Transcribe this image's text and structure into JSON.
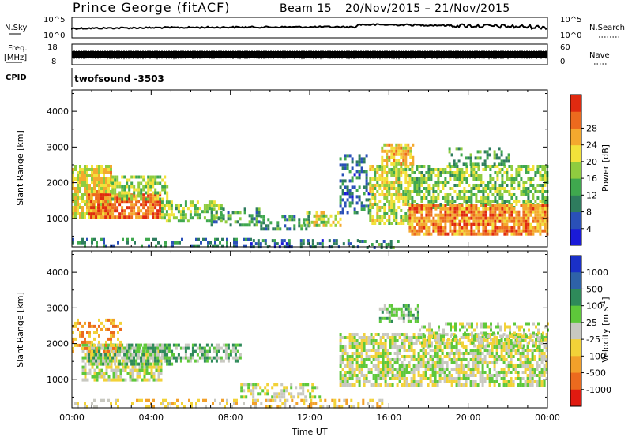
{
  "header": {
    "station": "Prince George (fitACF)",
    "beam": "Beam 15",
    "date_range": "20/Nov/2015 – 21/Nov/2015"
  },
  "strips": {
    "nsky_label": "N.Sky",
    "nsky_ticks": [
      "10^5",
      "10^0"
    ],
    "nsearch_label": "N.Search",
    "nsearch_ticks": [
      "10^5",
      "10^0"
    ],
    "freq_label_1": "Freq.",
    "freq_label_2": "[MHz]",
    "freq_ticks": [
      "18",
      "8"
    ],
    "nave_label": "Nave",
    "nave_ticks": [
      "60",
      "0"
    ],
    "cpid_label": "CPID",
    "cpid_value": "twofsound -3503"
  },
  "chart_data": [
    {
      "type": "heatmap",
      "name": "power",
      "ylabel": "Slant Range [km]",
      "ylim": [
        200,
        4600
      ],
      "yticks": [
        1000,
        2000,
        3000,
        4000
      ],
      "xlim": [
        0,
        24
      ],
      "colorbar": {
        "label": "Power [dB]",
        "range": [
          0,
          32
        ],
        "ticks": [
          "4",
          "8",
          "12",
          "16",
          "20",
          "24",
          "28"
        ],
        "colors": [
          "#1a1ad8",
          "#2a50b8",
          "#2e7c5e",
          "#3fa84e",
          "#8fcc3f",
          "#f2e23a",
          "#f4a92e",
          "#ec6a1e",
          "#e02a10"
        ]
      },
      "patches": [
        {
          "t0": 0.0,
          "t1": 9.2,
          "r0": 200,
          "r1": 450,
          "v": 9,
          "d": 0.35
        },
        {
          "t0": 9.0,
          "t1": 14.5,
          "r0": 200,
          "r1": 420,
          "v": 7,
          "d": 0.45
        },
        {
          "t0": 14.5,
          "t1": 16.5,
          "r0": 200,
          "r1": 400,
          "v": 10,
          "d": 0.3
        },
        {
          "t0": 0.0,
          "t1": 2.0,
          "r0": 1000,
          "r1": 2500,
          "v": 20,
          "d": 0.85
        },
        {
          "t0": 0.8,
          "t1": 4.5,
          "r0": 1000,
          "r1": 1700,
          "v": 27,
          "d": 0.8
        },
        {
          "t0": 2.0,
          "t1": 4.8,
          "r0": 1500,
          "r1": 2200,
          "v": 16,
          "d": 0.7
        },
        {
          "t0": 4.5,
          "t1": 7.5,
          "r0": 900,
          "r1": 1500,
          "v": 15,
          "d": 0.6
        },
        {
          "t0": 7.0,
          "t1": 9.5,
          "r0": 800,
          "r1": 1300,
          "v": 11,
          "d": 0.5
        },
        {
          "t0": 9.5,
          "t1": 12.0,
          "r0": 700,
          "r1": 1100,
          "v": 10,
          "d": 0.45
        },
        {
          "t0": 11.7,
          "t1": 13.5,
          "r0": 800,
          "r1": 1200,
          "v": 18,
          "d": 0.5
        },
        {
          "t0": 13.5,
          "t1": 15.0,
          "r0": 1200,
          "r1": 2800,
          "v": 8,
          "d": 0.45
        },
        {
          "t0": 15.0,
          "t1": 17.0,
          "r0": 900,
          "r1": 2500,
          "v": 18,
          "d": 0.7
        },
        {
          "t0": 15.6,
          "t1": 17.2,
          "r0": 2500,
          "r1": 3100,
          "v": 21,
          "d": 0.75
        },
        {
          "t0": 17.0,
          "t1": 24.0,
          "r0": 1300,
          "r1": 2500,
          "v": 15,
          "d": 0.6
        },
        {
          "t0": 17.0,
          "t1": 24.0,
          "r0": 600,
          "r1": 1400,
          "v": 25,
          "d": 0.85
        },
        {
          "t0": 19.0,
          "t1": 22.0,
          "r0": 2500,
          "r1": 3000,
          "v": 12,
          "d": 0.35
        }
      ]
    },
    {
      "type": "heatmap",
      "name": "velocity",
      "ylabel": "Slant Range [km]",
      "ylim": [
        200,
        4600
      ],
      "yticks": [
        1000,
        2000,
        3000,
        4000
      ],
      "xlim": [
        0,
        24
      ],
      "xticks": [
        "00:00",
        "04:00",
        "08:00",
        "12:00",
        "16:00",
        "20:00",
        "00:00"
      ],
      "xlabel": "Time UT",
      "colorbar": {
        "label": "Velocity [m s^-1]",
        "ticks": [
          "1000",
          "500",
          "100",
          "25",
          "-25",
          "-100",
          "-500",
          "-1000"
        ],
        "colors": [
          "#1a30c8",
          "#2e62a8",
          "#2e8a5a",
          "#5ec83a",
          "#c8c8c0",
          "#f2d238",
          "#f2a02a",
          "#ec6a1e",
          "#e01a10"
        ]
      },
      "patches": [
        {
          "t0": 0.0,
          "t1": 9.5,
          "r0": 200,
          "r1": 450,
          "v": 5,
          "d": 0.3
        },
        {
          "t0": 9.5,
          "t1": 16.0,
          "r0": 200,
          "r1": 450,
          "v": 5,
          "d": 0.4
        },
        {
          "t0": 0.5,
          "t1": 4.5,
          "r0": 1000,
          "r1": 2000,
          "v": 4,
          "d": 0.75
        },
        {
          "t0": 0.8,
          "t1": 5.0,
          "r0": 1400,
          "r1": 2000,
          "v": 3,
          "d": 0.7
        },
        {
          "t0": 4.5,
          "t1": 8.5,
          "r0": 1500,
          "r1": 2000,
          "v": 3,
          "d": 0.6
        },
        {
          "t0": 0.0,
          "t1": 2.5,
          "r0": 1800,
          "r1": 2700,
          "v": 6,
          "d": 0.4
        },
        {
          "t0": 8.5,
          "t1": 12.5,
          "r0": 500,
          "r1": 900,
          "v": 4,
          "d": 0.5
        },
        {
          "t0": 13.5,
          "t1": 24.0,
          "r0": 800,
          "r1": 2300,
          "v": 4,
          "d": 0.7
        },
        {
          "t0": 15.5,
          "t1": 17.5,
          "r0": 2600,
          "r1": 3100,
          "v": 3,
          "d": 0.6
        },
        {
          "t0": 17.5,
          "t1": 24.0,
          "r0": 1900,
          "r1": 2600,
          "v": 4,
          "d": 0.4
        }
      ]
    }
  ]
}
